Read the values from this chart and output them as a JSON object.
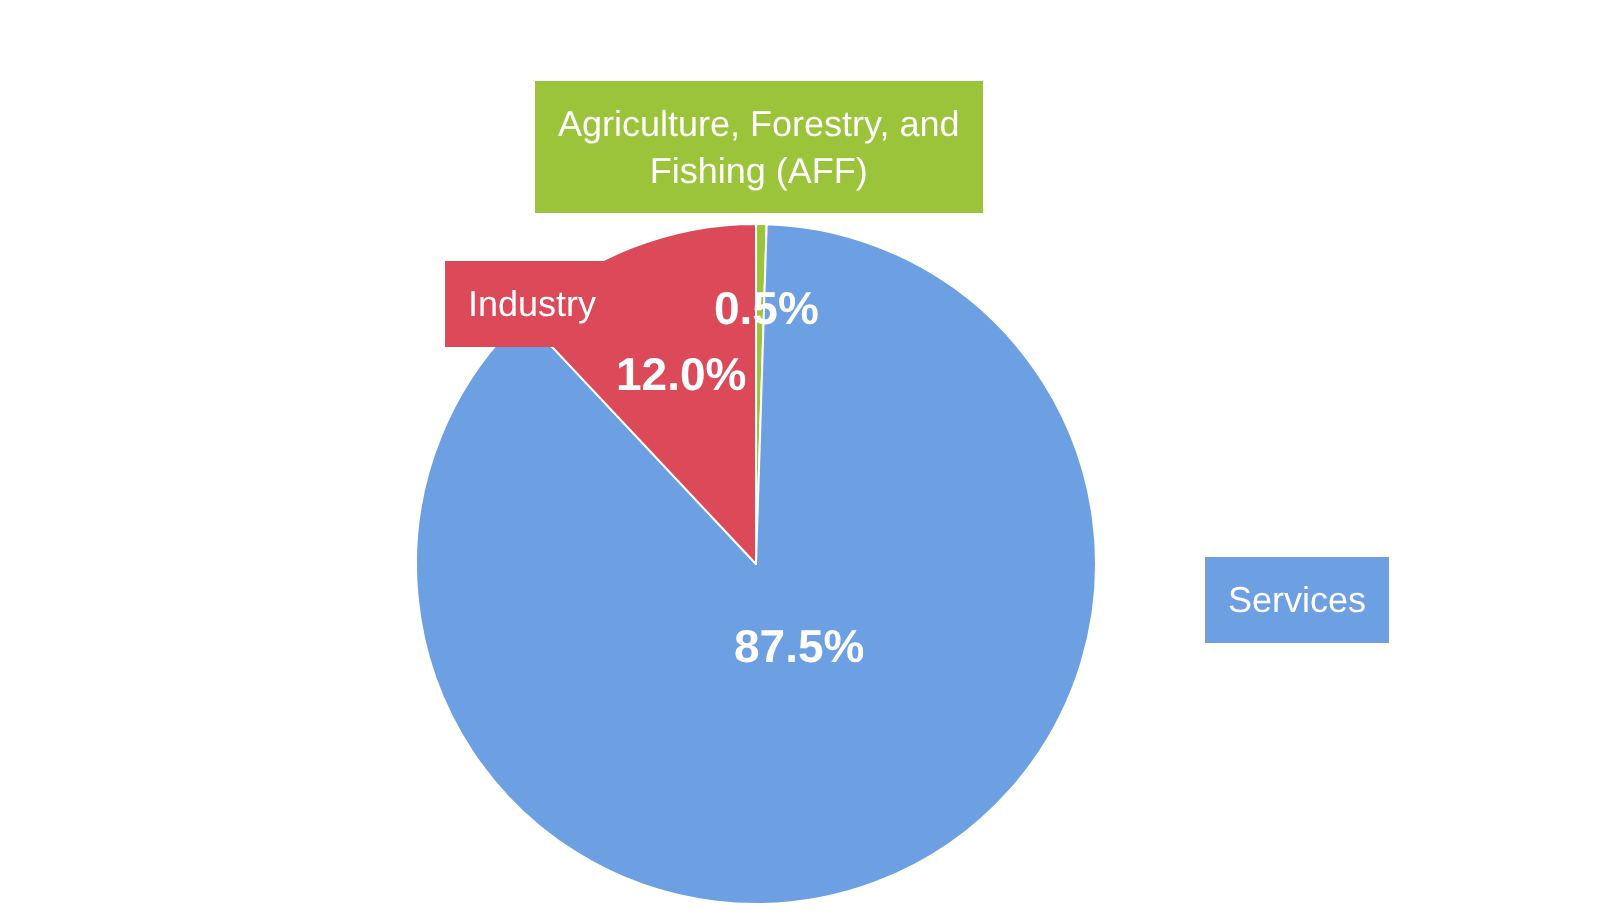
{
  "chart_data": {
    "type": "pie",
    "categories": [
      "Agriculture, Forestry, and Fishing (AFF)",
      "Services",
      "Industry"
    ],
    "values": [
      0.5,
      87.5,
      12.0
    ],
    "colors": [
      "#9cc43a",
      "#6d9fe3",
      "#dc4a5a"
    ],
    "value_labels": [
      "0.5%",
      "87.5%",
      "12.0%"
    ],
    "legend": false
  }
}
